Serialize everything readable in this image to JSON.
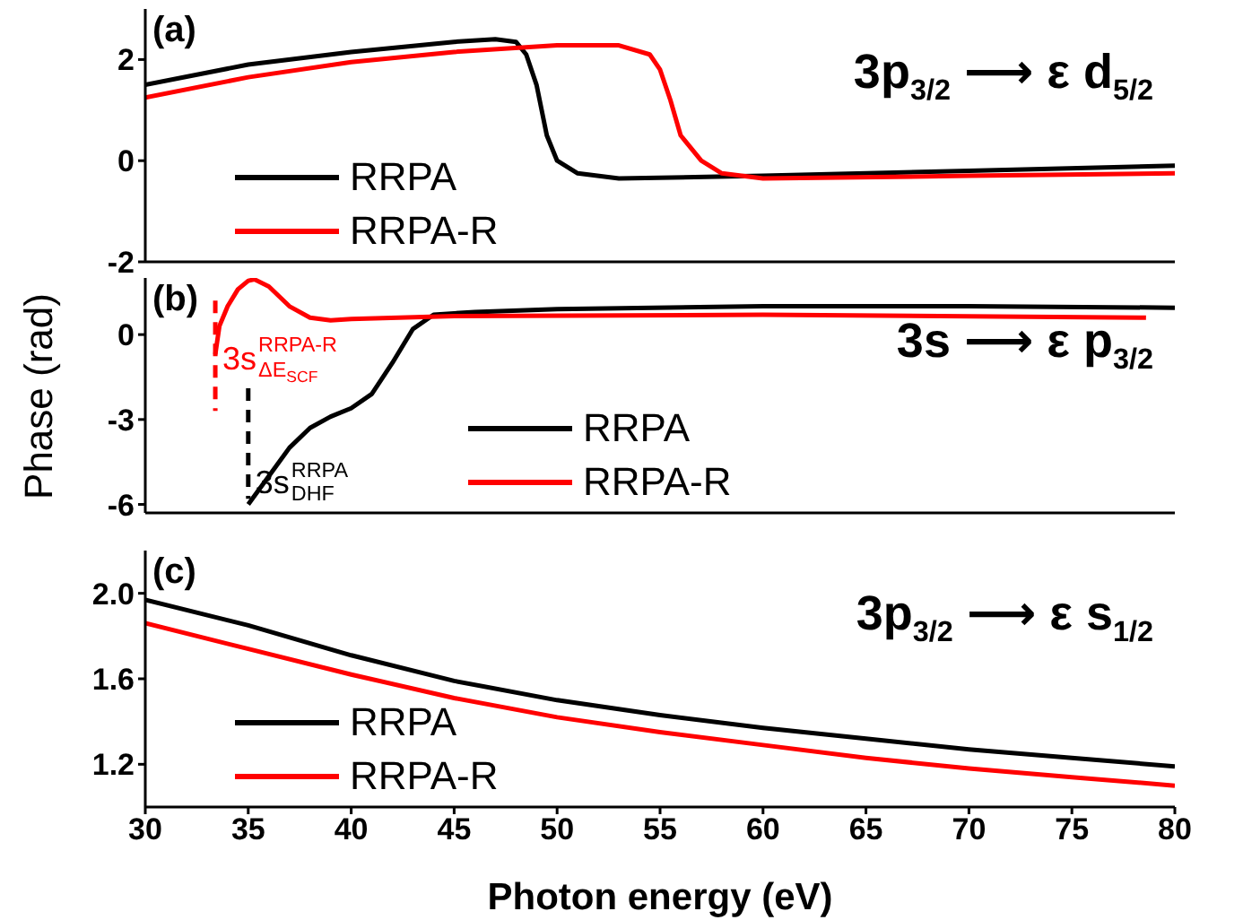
{
  "chart_data": [
    {
      "type": "line",
      "title": "3p$_{3/2}$ ⟶ ε d$_{5/2}$",
      "annotations": [
        "(a)"
      ],
      "xlim": [
        30,
        80
      ],
      "xticks": [
        30,
        35,
        40,
        45,
        50,
        55,
        60,
        65,
        70,
        75,
        80
      ],
      "ylim": [
        -2,
        3
      ],
      "yticks": [
        -2,
        0,
        2
      ],
      "tick_labels": "y",
      "legend": "bottom left",
      "series": [
        {
          "name": "RRPA",
          "color": "#000000",
          "x": [
            30,
            35,
            40,
            45,
            47,
            48,
            48.5,
            49,
            49.5,
            50,
            51,
            53,
            60,
            70,
            80
          ],
          "values": [
            1.5,
            1.9,
            2.15,
            2.35,
            2.4,
            2.35,
            2.1,
            1.5,
            0.5,
            0,
            -0.25,
            -0.35,
            -0.3,
            -0.2,
            -0.1
          ]
        },
        {
          "name": "RRPA-R",
          "color": "#ff0000",
          "x": [
            30,
            35,
            40,
            45,
            50,
            53,
            54.5,
            55,
            55.5,
            56,
            57,
            58,
            60,
            70,
            80
          ],
          "values": [
            1.25,
            1.65,
            1.95,
            2.15,
            2.28,
            2.28,
            2.1,
            1.8,
            1.2,
            0.5,
            0,
            -0.25,
            -0.35,
            -0.3,
            -0.25
          ]
        }
      ]
    },
    {
      "type": "line",
      "title": "3s ⟶ ε p$_{3/2}$",
      "annotations": [
        "(b)"
      ],
      "ylabel": "Phase (rad)",
      "xlim": [
        30,
        80
      ],
      "xticks": [
        30,
        35,
        40,
        45,
        50,
        55,
        60,
        65,
        70,
        75,
        80
      ],
      "ylim": [
        -6.3,
        2
      ],
      "yticks": [
        -6,
        -3,
        0
      ],
      "tick_labels": "y",
      "legend": "bottom",
      "series": [
        {
          "name": "RRPA",
          "color": "#000000",
          "x": [
            35,
            36,
            37,
            38,
            39,
            40,
            41,
            42,
            43,
            44,
            46,
            50,
            60,
            70,
            80
          ],
          "values": [
            -6,
            -5,
            -4,
            -3.3,
            -2.9,
            -2.6,
            -2.1,
            -1,
            0.2,
            0.7,
            0.8,
            0.9,
            1,
            1,
            0.95
          ]
        },
        {
          "name": "RRPA-R",
          "color": "#ff0000",
          "x": [
            33.4,
            33.6,
            34,
            34.5,
            35,
            35.3,
            36,
            37,
            38,
            39,
            40,
            45,
            60,
            78.6
          ],
          "values": [
            -0.7,
            0.3,
            1.0,
            1.6,
            1.9,
            1.95,
            1.7,
            1.0,
            0.6,
            0.5,
            0.55,
            0.65,
            0.7,
            0.6
          ]
        },
        {
          "name": "3s$^{RRPA-R}$$_{ΔE}$$_{SCF}$",
          "color": "#ff0000",
          "line_style": "dashed",
          "x": [
            33.4,
            33.4,
            33.4
          ],
          "values": [
            1.2,
            -1,
            -2.7
          ]
        },
        {
          "name": "3s$^{RRPA}$$_{DHF}$",
          "color": "#000000",
          "line_style": "dashed",
          "x": [
            35,
            35,
            35
          ],
          "values": [
            -1.9,
            -5.4,
            -5.8
          ]
        }
      ]
    },
    {
      "type": "line",
      "title": "3p$_{3/2}$ ⟶ ε s$_{1/2}$",
      "annotations": [
        "(c)"
      ],
      "xlabel": "Photon energy (eV)",
      "xlim": [
        30,
        80
      ],
      "xticks": [
        30,
        35,
        40,
        45,
        50,
        55,
        60,
        65,
        70,
        75,
        80
      ],
      "ylim": [
        1,
        2.2
      ],
      "yticks": [
        1.2,
        1.6,
        {
          "value": 2,
          "label": "2.0"
        }
      ],
      "legend": "bottom left",
      "series": [
        {
          "name": "RRPA",
          "color": "#000000",
          "x": [
            30,
            35,
            40,
            45,
            50,
            55,
            60,
            65,
            70,
            75,
            80
          ],
          "values": [
            1.97,
            1.85,
            1.71,
            1.59,
            1.5,
            1.43,
            1.37,
            1.32,
            1.27,
            1.23,
            1.19
          ]
        },
        {
          "name": "RRPA-R",
          "color": "#ff0000",
          "x": [
            30,
            35,
            40,
            45,
            50,
            55,
            60,
            65,
            70,
            75,
            80
          ],
          "values": [
            1.86,
            1.74,
            1.62,
            1.51,
            1.42,
            1.35,
            1.29,
            1.23,
            1.18,
            1.14,
            1.1
          ]
        }
      ]
    }
  ]
}
